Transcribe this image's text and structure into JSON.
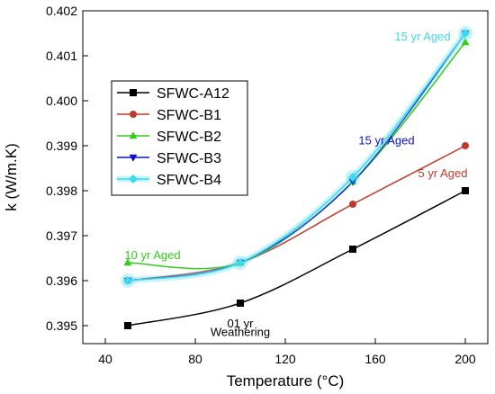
{
  "chart_data": {
    "type": "line",
    "title": "",
    "xlabel": "Temperature (°C)",
    "ylabel": "k (W/m.K)",
    "xlim": [
      30,
      210
    ],
    "ylim": [
      0.3946,
      0.402
    ],
    "x_ticks": [
      40,
      80,
      120,
      160,
      200
    ],
    "y_ticks": [
      0.395,
      0.396,
      0.397,
      0.398,
      0.399,
      0.4,
      0.401,
      0.402
    ],
    "x_tick_labels": [
      "40",
      "80",
      "120",
      "160",
      "200"
    ],
    "y_tick_labels": [
      "0.395",
      "0.396",
      "0.397",
      "0.398",
      "0.399",
      "0.400",
      "0.401",
      "0.402"
    ],
    "grid": false,
    "legend_position": "upper-left",
    "series": [
      {
        "name": "SFWC-A12",
        "color": "#000000",
        "marker": "square",
        "x": [
          50,
          100,
          150,
          200
        ],
        "y": [
          0.395,
          0.3955,
          0.3967,
          0.398
        ]
      },
      {
        "name": "SFWC-B1",
        "color": "#c0392b",
        "marker": "circle",
        "x": [
          50,
          100,
          150,
          200
        ],
        "y": [
          0.396,
          0.3964,
          0.3977,
          0.399
        ]
      },
      {
        "name": "SFWC-B2",
        "color": "#33cc1a",
        "marker": "triangle-up",
        "x": [
          50,
          100,
          150,
          200
        ],
        "y": [
          0.3964,
          0.3964,
          0.3982,
          0.4013
        ]
      },
      {
        "name": "SFWC-B3",
        "color": "#1010c8",
        "marker": "triangle-down",
        "x": [
          50,
          100,
          150,
          200
        ],
        "y": [
          0.396,
          0.3964,
          0.3982,
          0.4015
        ]
      },
      {
        "name": "SFWC-B4",
        "color": "#40d8f0",
        "marker": "diamond",
        "x": [
          50,
          100,
          150,
          200
        ],
        "y": [
          0.396,
          0.3964,
          0.3983,
          0.4015
        ]
      }
    ],
    "annotations": [
      {
        "text": "01 yr",
        "x": 100,
        "y": 0.39496,
        "color": "#000000"
      },
      {
        "text": "Weathering",
        "x": 100,
        "y": 0.39477,
        "color": "#000000"
      },
      {
        "text": "10 yr Aged",
        "x": 61,
        "y": 0.39648,
        "color": "#33cc1a"
      },
      {
        "text": "15 yr Aged",
        "x": 165,
        "y": 0.39903,
        "color": "#1010c8"
      },
      {
        "text": "5 yr Aged",
        "x": 190,
        "y": 0.3983,
        "color": "#c0392b"
      },
      {
        "text": "15 yr Aged",
        "x": 181,
        "y": 0.40134,
        "color": "#40d8f0"
      }
    ]
  }
}
